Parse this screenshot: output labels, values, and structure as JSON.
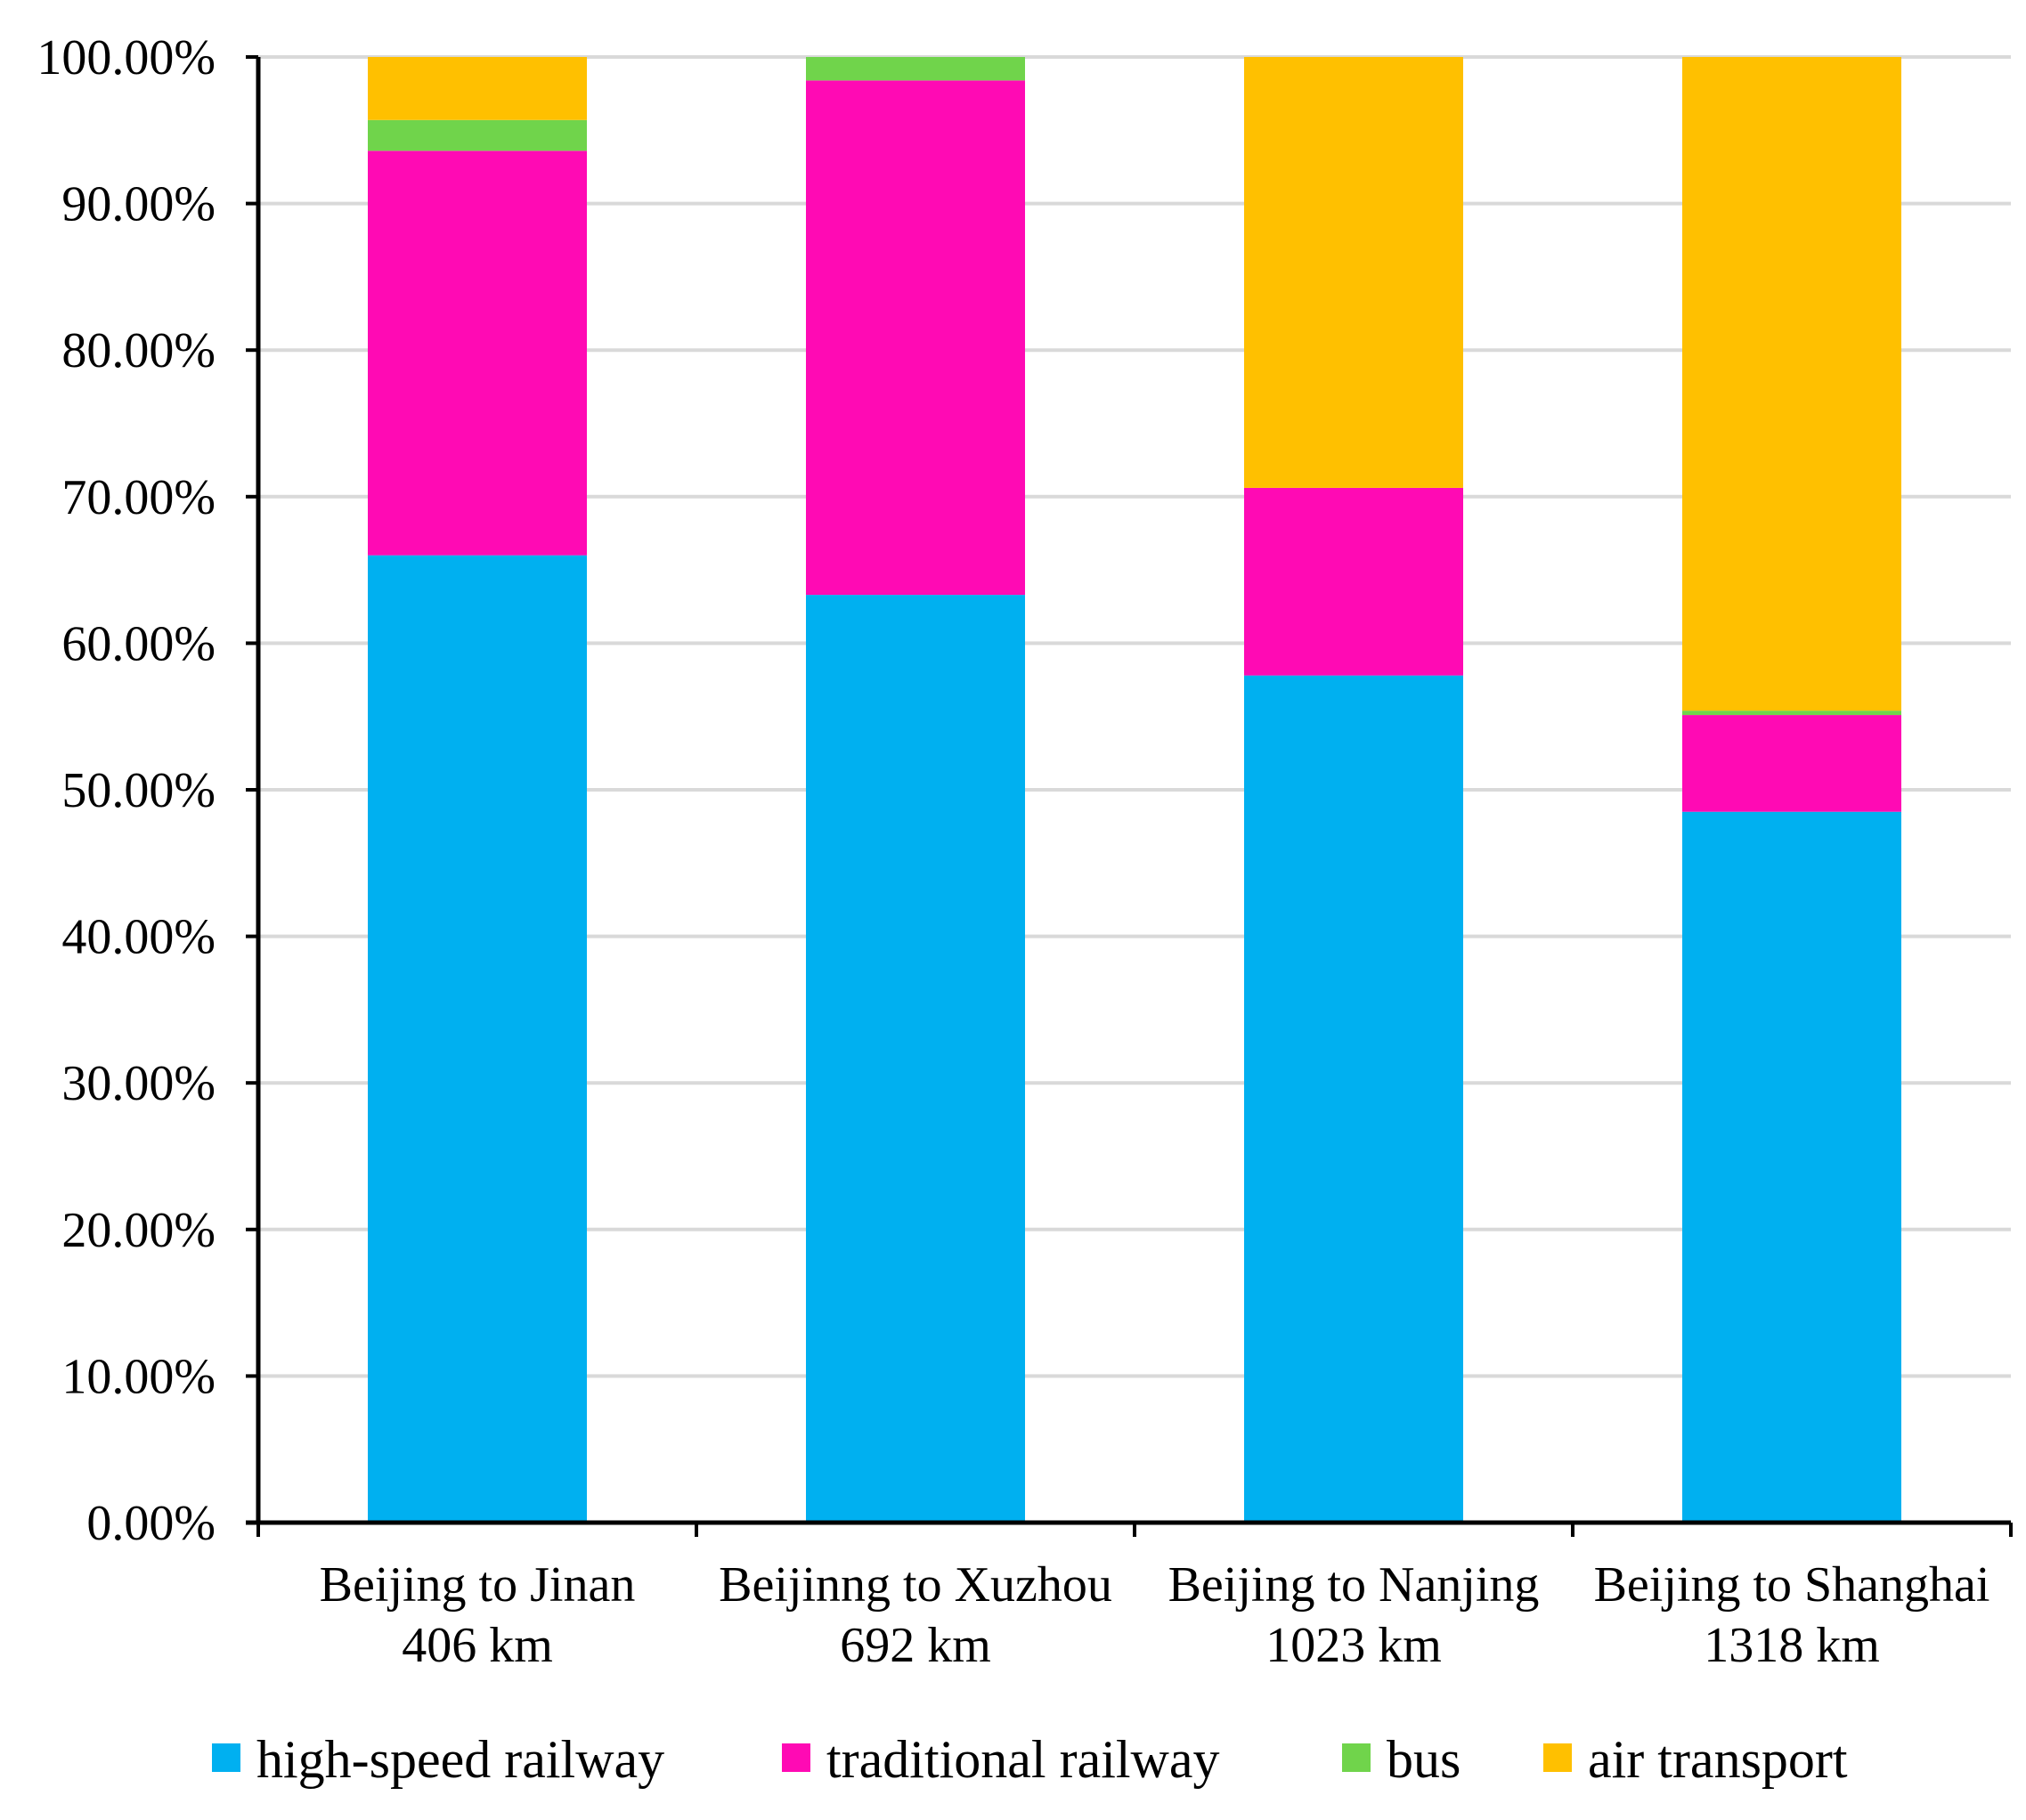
{
  "chart_data": {
    "type": "bar",
    "stacked": true,
    "title": "",
    "xlabel": "",
    "ylabel": "",
    "ylim": [
      0,
      100
    ],
    "grid": true,
    "legend_position": "bottom",
    "y_ticks": [
      0,
      10,
      20,
      30,
      40,
      50,
      60,
      70,
      80,
      90,
      100
    ],
    "y_tick_labels": [
      "0.00%",
      "10.00%",
      "20.00%",
      "30.00%",
      "40.00%",
      "50.00%",
      "60.00%",
      "70.00%",
      "80.00%",
      "90.00%",
      "100.00%"
    ],
    "categories": [
      {
        "route": "Beijing to Jinan",
        "distance": "406 km"
      },
      {
        "route": "Beijinng to Xuzhou",
        "distance": "692 km"
      },
      {
        "route": "Beijing to Nanjing",
        "distance": "1023 km"
      },
      {
        "route": "Beijing to Shanghai",
        "distance": "1318 km"
      }
    ],
    "series": [
      {
        "name": "high-speed railway",
        "color": "#00B0F0",
        "values": [
          66.0,
          63.3,
          57.8,
          48.5
        ]
      },
      {
        "name": "traditional railway",
        "color": "#FF0AB4",
        "values": [
          27.6,
          35.1,
          12.8,
          6.6
        ]
      },
      {
        "name": "bus",
        "color": "#70D44B",
        "values": [
          2.1,
          1.6,
          0.0,
          0.3
        ]
      },
      {
        "name": "air transport",
        "color": "#FFC000",
        "values": [
          4.3,
          0.0,
          29.4,
          44.6
        ]
      }
    ]
  }
}
